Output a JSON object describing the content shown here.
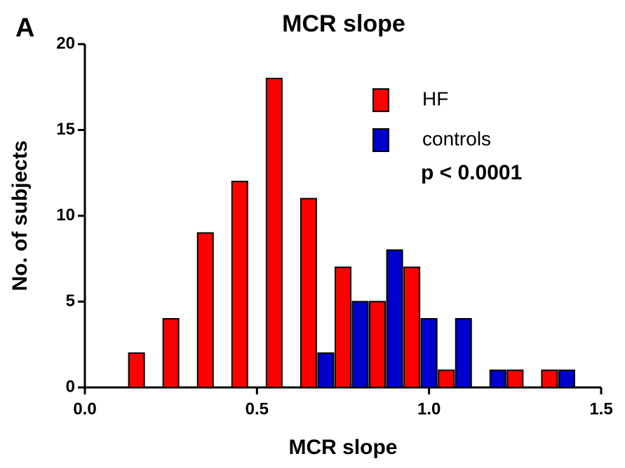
{
  "panel_label": "A",
  "chart_data": {
    "type": "bar",
    "title": "MCR slope",
    "x_label": "MCR slope",
    "y_label": "No. of subjects",
    "annotation": "p < 0.0001",
    "legend": "upper right",
    "series": [
      {
        "name": "HF",
        "color": "#ff0000",
        "x": [
          0.15,
          0.25,
          0.35,
          0.45,
          0.55,
          0.65,
          0.75,
          0.85,
          0.95,
          1.05,
          1.25,
          1.35
        ],
        "values": [
          2,
          4,
          9,
          12,
          18,
          11,
          7,
          5,
          7,
          1,
          1,
          1
        ]
      },
      {
        "name": "controls",
        "color": "#0000cc",
        "x": [
          0.7,
          0.8,
          0.9,
          1.0,
          1.1,
          1.2,
          1.4
        ],
        "values": [
          2,
          5,
          8,
          4,
          4,
          1,
          1
        ]
      }
    ],
    "xlim": [
      0,
      1.5
    ],
    "xticks": [
      {
        "value": 0,
        "label": "0.0"
      },
      0.5,
      {
        "value": 1,
        "label": "1.0"
      },
      1.5
    ],
    "ylim": [
      0,
      20
    ],
    "yticks": [
      0,
      5,
      10,
      15,
      20
    ]
  }
}
